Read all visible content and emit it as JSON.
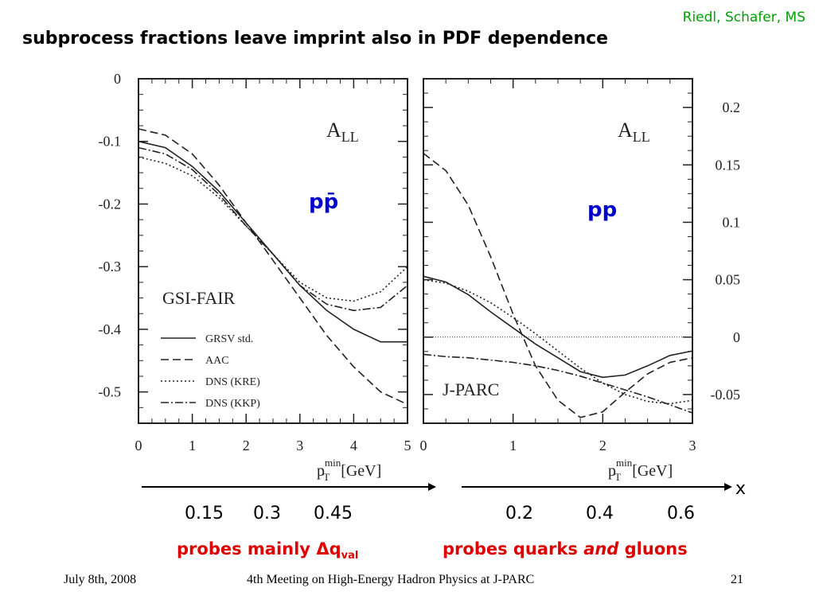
{
  "credit": "Riedl, Schafer, MS",
  "title": "subprocess fractions leave imprint also in PDF dependence",
  "x_arrow_label": "x",
  "left_x_values": [
    "0.15",
    "0.3",
    "0.45"
  ],
  "right_x_values": [
    "0.2",
    "0.4",
    "0.6"
  ],
  "probe_left": {
    "prefix": "probes mainly ",
    "delta": "Δq",
    "sub": "val"
  },
  "probe_right": {
    "prefix": "probes quarks ",
    "italic": "and",
    "suffix": " gluons"
  },
  "footer": {
    "date": "July 8th, 2008",
    "meeting": "4th Meeting on High-Energy Hadron Physics at J-PARC",
    "page": "21"
  },
  "colors": {
    "credit": "#00a000",
    "probe_text": "#dd0000",
    "label_blue": "#0000cc"
  },
  "chart_data": [
    {
      "type": "line",
      "panel_label": "GSI-FAIR",
      "observable": {
        "main": "A",
        "sub": "LL"
      },
      "reaction_label": "pp̄",
      "xlabel": {
        "main": "p",
        "sub": "T",
        "sup": "min",
        "unit": "[GeV]"
      },
      "xlim": [
        0,
        5
      ],
      "ylim": [
        -0.55,
        0.0
      ],
      "xticks": [
        "0",
        "1",
        "2",
        "3",
        "4",
        "5"
      ],
      "yticks": [
        "0",
        "-0.1",
        "-0.2",
        "-0.3",
        "-0.4",
        "-0.5"
      ],
      "legend_position": "bottom-left",
      "series": [
        {
          "name": "GRSV std.",
          "dash": "solid",
          "x": [
            0,
            0.5,
            1,
            1.5,
            2,
            2.5,
            3,
            3.5,
            4,
            4.5,
            5
          ],
          "y": [
            -0.1,
            -0.11,
            -0.14,
            -0.18,
            -0.23,
            -0.28,
            -0.33,
            -0.37,
            -0.4,
            -0.42,
            -0.42
          ]
        },
        {
          "name": "AAC",
          "dash": "dashed",
          "x": [
            0,
            0.5,
            1,
            1.5,
            2,
            2.5,
            3,
            3.5,
            4,
            4.5,
            5
          ],
          "y": [
            -0.08,
            -0.09,
            -0.12,
            -0.17,
            -0.23,
            -0.29,
            -0.35,
            -0.41,
            -0.46,
            -0.5,
            -0.52
          ]
        },
        {
          "name": "DNS (KRE)",
          "dash": "dotted",
          "x": [
            0,
            0.5,
            1,
            1.5,
            2,
            2.5,
            3,
            3.5,
            4,
            4.5,
            5
          ],
          "y": [
            -0.125,
            -0.135,
            -0.155,
            -0.19,
            -0.235,
            -0.28,
            -0.325,
            -0.35,
            -0.355,
            -0.34,
            -0.3
          ]
        },
        {
          "name": "DNS (KKP)",
          "dash": "dashdot",
          "x": [
            0,
            0.5,
            1,
            1.5,
            2,
            2.5,
            3,
            3.5,
            4,
            4.5,
            5
          ],
          "y": [
            -0.11,
            -0.12,
            -0.145,
            -0.185,
            -0.235,
            -0.28,
            -0.33,
            -0.36,
            -0.37,
            -0.365,
            -0.33
          ]
        }
      ]
    },
    {
      "type": "line",
      "panel_label": "J-PARC",
      "observable": {
        "main": "A",
        "sub": "LL"
      },
      "reaction_label": "pp",
      "xlabel": {
        "main": "p",
        "sub": "T",
        "sup": "min",
        "unit": "[GeV]"
      },
      "xlim": [
        0,
        3
      ],
      "ylim": [
        -0.075,
        0.225
      ],
      "xticks": [
        "0",
        "1",
        "2",
        "3"
      ],
      "yticks": [
        "0.2",
        "0.15",
        "0.1",
        "0.05",
        "0",
        "-0.05"
      ],
      "reference_line": 0,
      "series": [
        {
          "name": "GRSV std.",
          "dash": "solid",
          "x": [
            0,
            0.25,
            0.5,
            0.75,
            1,
            1.25,
            1.5,
            1.75,
            2,
            2.25,
            2.5,
            2.75,
            3
          ],
          "y": [
            0.053,
            0.048,
            0.037,
            0.022,
            0.008,
            -0.006,
            -0.018,
            -0.03,
            -0.035,
            -0.033,
            -0.025,
            -0.016,
            -0.012
          ]
        },
        {
          "name": "AAC",
          "dash": "dashed",
          "x": [
            0,
            0.25,
            0.5,
            0.75,
            1,
            1.25,
            1.5,
            1.75,
            2,
            2.25,
            2.5,
            2.75,
            3
          ],
          "y": [
            0.16,
            0.145,
            0.115,
            0.07,
            0.02,
            -0.025,
            -0.055,
            -0.07,
            -0.065,
            -0.048,
            -0.032,
            -0.022,
            -0.018
          ]
        },
        {
          "name": "DNS (KRE)",
          "dash": "dotted",
          "x": [
            0,
            0.25,
            0.5,
            0.75,
            1,
            1.25,
            1.5,
            1.75,
            2,
            2.25,
            2.5,
            2.75,
            3
          ],
          "y": [
            0.05,
            0.047,
            0.04,
            0.03,
            0.017,
            0.003,
            -0.012,
            -0.027,
            -0.04,
            -0.05,
            -0.056,
            -0.058,
            -0.055
          ]
        },
        {
          "name": "DNS (KKP)",
          "dash": "dashdot",
          "x": [
            0,
            0.25,
            0.5,
            0.75,
            1,
            1.25,
            1.5,
            1.75,
            2,
            2.25,
            2.5,
            2.75,
            3
          ],
          "y": [
            -0.015,
            -0.017,
            -0.018,
            -0.02,
            -0.022,
            -0.025,
            -0.029,
            -0.034,
            -0.04,
            -0.046,
            -0.052,
            -0.059,
            -0.066
          ]
        }
      ]
    }
  ]
}
